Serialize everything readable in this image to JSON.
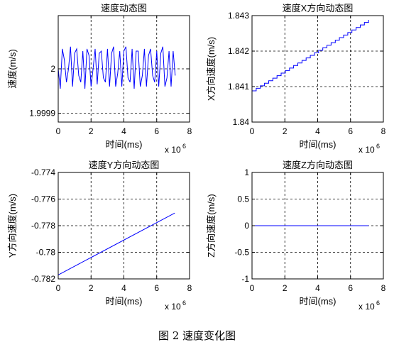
{
  "figure_caption": "图 2  速度变化图",
  "chart_data": [
    {
      "type": "line",
      "title": "速度动态图",
      "xlabel": "时间(ms)",
      "ylabel": "速度(m/s)",
      "x_exponent": "x 10",
      "x_exponent_power": "6",
      "xlim": [
        0,
        8000000
      ],
      "ylim": [
        1.99988,
        2.00012
      ],
      "xticks": [
        0,
        2000000,
        4000000,
        6000000,
        8000000
      ],
      "xtick_labels": [
        "0",
        "2",
        "4",
        "6",
        "8"
      ],
      "yticks": [
        1.9999,
        2.0
      ],
      "ytick_labels": [
        "1.9999",
        "2"
      ],
      "grid": true,
      "color": "#0000ff",
      "series": [
        {
          "x": [
            0,
            125000,
            250000,
            375000,
            500000,
            625000,
            750000,
            875000,
            1000000,
            1125000,
            1250000,
            1375000,
            1500000,
            1625000,
            1750000,
            1875000,
            2000000,
            2125000,
            2250000,
            2375000,
            2500000,
            2625000,
            2750000,
            2875000,
            3000000,
            3125000,
            3250000,
            3375000,
            3500000,
            3625000,
            3750000,
            3875000,
            4000000,
            4125000,
            4250000,
            4375000,
            4500000,
            4625000,
            4750000,
            4875000,
            5000000,
            5125000,
            5250000,
            5375000,
            5500000,
            5625000,
            5750000,
            5875000,
            6000000,
            6125000,
            6250000,
            6375000,
            6500000,
            6625000,
            6750000,
            6875000,
            7000000,
            7125000
          ],
          "values": [
            2.0,
            1.999955,
            2.000045,
            2.00002,
            1.99997,
            2.0,
            2.00005,
            1.99996,
            2.000035,
            2.000045,
            1.999985,
            1.99997,
            2.00004,
            1.999955,
            2.000045,
            2.00003,
            1.99996,
            2.0,
            2.000045,
            1.999965,
            2.000035,
            2.00004,
            1.99998,
            1.99997,
            2.000045,
            1.99996,
            2.000035,
            2.00005,
            1.99996,
            1.99999,
            2.00004,
            1.99996,
            2.00004,
            2.00005,
            1.99998,
            1.99997,
            2.000045,
            1.999955,
            2.00004,
            2.00004,
            1.99996,
            1.999985,
            2.000045,
            1.99996,
            2.00003,
            2.000045,
            1.999985,
            1.99997,
            2.00004,
            1.99996,
            2.000035,
            2.00005,
            1.99996,
            1.99998,
            2.00004,
            1.99996,
            2.00004,
            1.999985
          ]
        }
      ]
    },
    {
      "type": "line",
      "title": "速度X方向动态图",
      "xlabel": "时间(ms)",
      "ylabel": "X方向速度(m/s)",
      "x_exponent": "x 10",
      "x_exponent_power": "6",
      "xlim": [
        0,
        8000000
      ],
      "ylim": [
        1.84,
        1.843
      ],
      "xticks": [
        0,
        2000000,
        4000000,
        6000000,
        8000000
      ],
      "xtick_labels": [
        "0",
        "2",
        "4",
        "6",
        "8"
      ],
      "yticks": [
        1.84,
        1.841,
        1.842,
        1.843
      ],
      "ytick_labels": [
        "1.84",
        "1.841",
        "1.842",
        "1.843"
      ],
      "grid": true,
      "color": "#0000ff",
      "series": [
        {
          "x_start": 0,
          "x_end": 7100000,
          "y_start": 1.84088,
          "y_end": 1.84288,
          "steps": 28
        }
      ]
    },
    {
      "type": "line",
      "title": "速度Y方向动态图",
      "xlabel": "时间(ms)",
      "ylabel": "Y方向速度(m/s)",
      "x_exponent": "x 10",
      "x_exponent_power": "6",
      "xlim": [
        0,
        8000000
      ],
      "ylim": [
        -0.782,
        -0.774
      ],
      "xticks": [
        0,
        2000000,
        4000000,
        6000000,
        8000000
      ],
      "xtick_labels": [
        "0",
        "2",
        "4",
        "6",
        "8"
      ],
      "yticks": [
        -0.782,
        -0.78,
        -0.778,
        -0.776,
        -0.774
      ],
      "ytick_labels": [
        "-0.782",
        "-0.78",
        "-0.778",
        "-0.776",
        "-0.774"
      ],
      "grid": true,
      "color": "#0000ff",
      "series": [
        {
          "x": [
            0,
            7100000
          ],
          "values": [
            -0.7817,
            -0.77705
          ]
        }
      ]
    },
    {
      "type": "line",
      "title": "速度Z方向动态图",
      "xlabel": "时间(ms)",
      "ylabel": "Z方向速度(m/s)",
      "x_exponent": "x 10",
      "x_exponent_power": "6",
      "xlim": [
        0,
        8000000
      ],
      "ylim": [
        -1,
        1
      ],
      "xticks": [
        0,
        2000000,
        4000000,
        6000000,
        8000000
      ],
      "xtick_labels": [
        "0",
        "2",
        "4",
        "6",
        "8"
      ],
      "yticks": [
        -1,
        -0.5,
        0,
        0.5,
        1
      ],
      "ytick_labels": [
        "-1",
        "-0.5",
        "0",
        "0.5",
        "1"
      ],
      "grid": true,
      "color": "#0000ff",
      "series": [
        {
          "x": [
            0,
            7100000
          ],
          "values": [
            0,
            0
          ]
        }
      ]
    }
  ]
}
